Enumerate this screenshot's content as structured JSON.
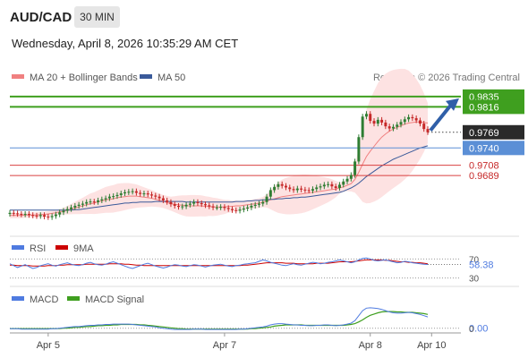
{
  "header": {
    "symbol": "AUD/CAD",
    "timeframe": "30 MIN",
    "datetime": "Wednesday, April 8, 2026 10:35:29 AM CET",
    "credit": "Research © 2026 Trading Central"
  },
  "legend": {
    "ma20_label": "MA 20 + Bollinger Bands",
    "ma50_label": "MA 50",
    "rsi_label": "RSI",
    "rsi_ma_label": "9MA",
    "macd_label": "MACD",
    "macd_signal_label": "MACD Signal"
  },
  "colors": {
    "candle_up": "#2e7d32",
    "candle_down": "#c62828",
    "ma20": "#f08080",
    "ma50": "#3a5a9a",
    "bollinger_fill": "#fde2e2",
    "support_line": "#5b8fd6",
    "resistance_line": "#3f9f1f",
    "pivot_line": "#d94040",
    "rsi_line": "#4f7be0",
    "rsi_ma": "#cc0000",
    "macd_line": "#4f7be0",
    "macd_signal": "#3f9f1f",
    "arrow": "#2f5fa8"
  },
  "chart_data": {
    "type": "candlestick",
    "y_range": [
      0.958,
      0.9858
    ],
    "x_ticks": [
      "Apr 5",
      "Apr 7",
      "Apr 8",
      "Apr 10"
    ],
    "levels": [
      {
        "value": 0.9835,
        "label": "0.9835",
        "kind": "resistance"
      },
      {
        "value": 0.9816,
        "label": "0.9816",
        "kind": "resistance"
      },
      {
        "value": 0.9769,
        "label": "0.9769",
        "kind": "last"
      },
      {
        "value": 0.974,
        "label": "0.9740",
        "kind": "support"
      },
      {
        "value": 0.9708,
        "label": "0.9708",
        "kind": "pivot"
      },
      {
        "value": 0.9689,
        "label": "0.9689",
        "kind": "pivot"
      }
    ],
    "close": [
      0.962,
      0.9619,
      0.9618,
      0.9617,
      0.9618,
      0.9616,
      0.9615,
      0.9614,
      0.9616,
      0.9613,
      0.9612,
      0.9614,
      0.9617,
      0.9621,
      0.9624,
      0.9627,
      0.963,
      0.9633,
      0.9635,
      0.9637,
      0.964,
      0.9641,
      0.964,
      0.9643,
      0.9645,
      0.9647,
      0.965,
      0.9651,
      0.9653,
      0.9656,
      0.9658,
      0.9659,
      0.966,
      0.9657,
      0.9655,
      0.9656,
      0.9654,
      0.9652,
      0.965,
      0.9647,
      0.9643,
      0.964,
      0.9636,
      0.9633,
      0.9631,
      0.9632,
      0.9635,
      0.9637,
      0.964,
      0.9638,
      0.9636,
      0.9634,
      0.9632,
      0.963,
      0.963,
      0.9631,
      0.9629,
      0.9627,
      0.9625,
      0.9624,
      0.9626,
      0.9628,
      0.963,
      0.9633,
      0.9635,
      0.9637,
      0.964,
      0.965,
      0.9662,
      0.9668,
      0.9673,
      0.967,
      0.9667,
      0.9664,
      0.9662,
      0.9665,
      0.9663,
      0.9662,
      0.9661,
      0.9664,
      0.9667,
      0.9669,
      0.9672,
      0.9673,
      0.9669,
      0.9666,
      0.9672,
      0.9678,
      0.9683,
      0.969,
      0.9715,
      0.976,
      0.9798,
      0.9803,
      0.979,
      0.9785,
      0.9792,
      0.9787,
      0.978,
      0.9776,
      0.9779,
      0.9783,
      0.9788,
      0.9793,
      0.9797,
      0.9795,
      0.9791,
      0.9785,
      0.9775,
      0.9769
    ],
    "ma20": [
      0.9615,
      0.9615,
      0.9615,
      0.9615,
      0.9616,
      0.9616,
      0.9616,
      0.9616,
      0.9617,
      0.9617,
      0.9618,
      0.9619,
      0.962,
      0.9622,
      0.9623,
      0.9625,
      0.9627,
      0.9629,
      0.9631,
      0.9633,
      0.9635,
      0.9637,
      0.9638,
      0.964,
      0.9642,
      0.9644,
      0.9645,
      0.9646,
      0.9648,
      0.9649,
      0.965,
      0.9651,
      0.9651,
      0.9651,
      0.965,
      0.9649,
      0.9648,
      0.9647,
      0.9645,
      0.9643,
      0.9641,
      0.9639,
      0.9637,
      0.9636,
      0.9635,
      0.9634,
      0.9633,
      0.9633,
      0.9633,
      0.9633,
      0.9633,
      0.9632,
      0.9632,
      0.9631,
      0.9631,
      0.9631,
      0.9631,
      0.9632,
      0.9632,
      0.9633,
      0.9633,
      0.9634,
      0.9635,
      0.9636,
      0.9637,
      0.9638,
      0.964,
      0.9642,
      0.9644,
      0.9646,
      0.9648,
      0.965,
      0.9651,
      0.9652,
      0.9653,
      0.9654,
      0.9655,
      0.9656,
      0.9657,
      0.9658,
      0.9659,
      0.966,
      0.9661,
      0.9662,
      0.9663,
      0.9664,
      0.9666,
      0.9668,
      0.9671,
      0.9674,
      0.9682,
      0.9695,
      0.971,
      0.9724,
      0.9734,
      0.9743,
      0.9752,
      0.976,
      0.9766,
      0.9771,
      0.9775,
      0.9778,
      0.9781,
      0.9784,
      0.9786,
      0.9787,
      0.9788,
      0.9788,
      0.9787,
      0.9786
    ],
    "ma50": [
      0.9625,
      0.9625,
      0.9625,
      0.9625,
      0.9625,
      0.9625,
      0.9625,
      0.9625,
      0.9625,
      0.9625,
      0.9625,
      0.9625,
      0.9625,
      0.9625,
      0.9625,
      0.9625,
      0.9625,
      0.9626,
      0.9626,
      0.9627,
      0.9628,
      0.9629,
      0.963,
      0.9631,
      0.9632,
      0.9633,
      0.9634,
      0.9635,
      0.9636,
      0.9637,
      0.9638,
      0.9638,
      0.9639,
      0.9639,
      0.964,
      0.964,
      0.964,
      0.964,
      0.9641,
      0.9641,
      0.9641,
      0.9641,
      0.9641,
      0.9641,
      0.9641,
      0.9641,
      0.964,
      0.964,
      0.964,
      0.964,
      0.964,
      0.964,
      0.964,
      0.964,
      0.964,
      0.964,
      0.964,
      0.964,
      0.964,
      0.9641,
      0.9641,
      0.9641,
      0.9642,
      0.9642,
      0.9643,
      0.9643,
      0.9644,
      0.9644,
      0.9645,
      0.9645,
      0.9646,
      0.9646,
      0.9647,
      0.9647,
      0.9648,
      0.9648,
      0.9649,
      0.9649,
      0.965,
      0.9651,
      0.9652,
      0.9653,
      0.9654,
      0.9655,
      0.9656,
      0.9657,
      0.9658,
      0.966,
      0.9663,
      0.9666,
      0.967,
      0.9675,
      0.9681,
      0.9687,
      0.9692,
      0.9697,
      0.9702,
      0.9707,
      0.9711,
      0.9715,
      0.9719,
      0.9722,
      0.9725,
      0.9728,
      0.9731,
      0.9734,
      0.9737,
      0.974,
      0.9742,
      0.9744
    ],
    "rsi": {
      "ticks": [
        70,
        30
      ],
      "last_label": "58.38",
      "y_range": [
        20,
        80
      ],
      "values": [
        60,
        56,
        52,
        55,
        58,
        54,
        50,
        52,
        56,
        58,
        60,
        57,
        55,
        58,
        60,
        62,
        59,
        57,
        56,
        58,
        61,
        63,
        60,
        58,
        57,
        59,
        62,
        64,
        61,
        58,
        55,
        52,
        50,
        53,
        56,
        59,
        61,
        58,
        55,
        53,
        51,
        53,
        56,
        58,
        57,
        55,
        54,
        56,
        58,
        57,
        55,
        53,
        55,
        57,
        58,
        59,
        57,
        55,
        54,
        56,
        57,
        59,
        60,
        61,
        62,
        65,
        68,
        66,
        63,
        61,
        59,
        57,
        56,
        58,
        60,
        58,
        57,
        59,
        61,
        63,
        62,
        60,
        61,
        63,
        64,
        66,
        68,
        66,
        64,
        62,
        64,
        68,
        71,
        72,
        70,
        67,
        66,
        67,
        68,
        66,
        64,
        62,
        63,
        65,
        64,
        62,
        61,
        60,
        59,
        58.38
      ],
      "ma9": [
        57,
        57,
        56,
        56,
        56,
        56,
        55,
        55,
        55,
        55,
        56,
        56,
        56,
        57,
        57,
        58,
        58,
        58,
        58,
        58,
        59,
        59,
        59,
        59,
        59,
        59,
        60,
        60,
        60,
        60,
        59,
        59,
        58,
        57,
        57,
        56,
        56,
        56,
        56,
        56,
        56,
        56,
        56,
        56,
        56,
        56,
        56,
        56,
        56,
        56,
        56,
        56,
        56,
        56,
        56,
        56,
        56,
        56,
        56,
        56,
        56,
        57,
        57,
        58,
        59,
        60,
        61,
        62,
        62,
        62,
        62,
        62,
        61,
        61,
        61,
        60,
        60,
        60,
        60,
        60,
        61,
        61,
        61,
        61,
        62,
        63,
        64,
        64,
        64,
        64,
        65,
        66,
        67,
        68,
        68,
        68,
        68,
        68,
        67,
        67,
        66,
        65,
        64,
        64,
        63,
        63,
        62,
        62,
        61,
        60
      ]
    },
    "macd": {
      "zero_label": "0.00",
      "zero_tick": "0",
      "values": [
        -0.0001,
        -0.0001,
        -0.0001,
        -0.0002,
        -0.0002,
        -0.0002,
        -0.0002,
        -0.0002,
        -0.0002,
        -0.0002,
        -0.0002,
        -0.0001,
        -0.0001,
        0.0,
        0.0001,
        0.0002,
        0.0003,
        0.0004,
        0.0004,
        0.0005,
        0.0006,
        0.0007,
        0.0007,
        0.0008,
        0.0008,
        0.0009,
        0.0009,
        0.001,
        0.001,
        0.001,
        0.001,
        0.001,
        0.0009,
        0.0008,
        0.0007,
        0.0006,
        0.0005,
        0.0004,
        0.0003,
        0.0001,
        0.0,
        -0.0001,
        -0.0002,
        -0.0003,
        -0.0003,
        -0.0003,
        -0.0003,
        -0.0003,
        -0.0002,
        -0.0002,
        -0.0002,
        -0.0003,
        -0.0003,
        -0.0003,
        -0.0003,
        -0.0003,
        -0.0003,
        -0.0003,
        -0.0003,
        -0.0003,
        -0.0002,
        -0.0002,
        -0.0001,
        0.0,
        0.0001,
        0.0002,
        0.0003,
        0.0005,
        0.0008,
        0.001,
        0.0011,
        0.0011,
        0.001,
        0.0009,
        0.0008,
        0.0008,
        0.0007,
        0.0007,
        0.0006,
        0.0006,
        0.0007,
        0.0007,
        0.0008,
        0.0008,
        0.0007,
        0.0006,
        0.0007,
        0.0008,
        0.001,
        0.0012,
        0.0018,
        0.003,
        0.0042,
        0.0048,
        0.0049,
        0.0048,
        0.0047,
        0.0045,
        0.0042,
        0.0039,
        0.0037,
        0.0036,
        0.0036,
        0.0037,
        0.0038,
        0.0037,
        0.0035,
        0.0033,
        0.003,
        0.0027
      ],
      "signal": [
        -0.0001,
        -0.0001,
        -0.0001,
        -0.0001,
        -0.0001,
        -0.0001,
        -0.0001,
        -0.0001,
        -0.0001,
        -0.0001,
        -0.0001,
        -0.0001,
        -0.0001,
        -0.0001,
        0.0,
        0.0,
        0.0001,
        0.0002,
        0.0002,
        0.0003,
        0.0004,
        0.0004,
        0.0005,
        0.0006,
        0.0006,
        0.0007,
        0.0007,
        0.0008,
        0.0008,
        0.0009,
        0.0009,
        0.0009,
        0.0009,
        0.0009,
        0.0008,
        0.0008,
        0.0007,
        0.0006,
        0.0005,
        0.0004,
        0.0003,
        0.0002,
        0.0001,
        0.0,
        -0.0001,
        -0.0001,
        -0.0002,
        -0.0002,
        -0.0002,
        -0.0002,
        -0.0002,
        -0.0002,
        -0.0002,
        -0.0002,
        -0.0002,
        -0.0002,
        -0.0002,
        -0.0002,
        -0.0002,
        -0.0002,
        -0.0002,
        -0.0002,
        -0.0002,
        -0.0001,
        -0.0001,
        0.0,
        0.0001,
        0.0002,
        0.0003,
        0.0005,
        0.0006,
        0.0007,
        0.0008,
        0.0008,
        0.0008,
        0.0008,
        0.0008,
        0.0007,
        0.0007,
        0.0007,
        0.0007,
        0.0007,
        0.0007,
        0.0007,
        0.0007,
        0.0007,
        0.0007,
        0.0007,
        0.0008,
        0.0009,
        0.0011,
        0.0015,
        0.002,
        0.0026,
        0.0031,
        0.0034,
        0.0037,
        0.0039,
        0.004,
        0.004,
        0.004,
        0.0039,
        0.0039,
        0.0038,
        0.0038,
        0.0038,
        0.0037,
        0.0036,
        0.0035,
        0.0033
      ]
    }
  }
}
